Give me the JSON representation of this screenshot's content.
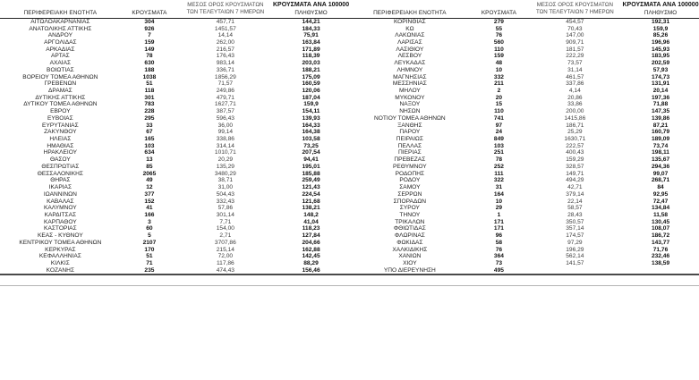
{
  "table": {
    "headers": {
      "region": "ΠΕΡΙΦΕΡΕΙΑΚΗ ΕΝΟΤΗΤΑ",
      "cases": "ΚΡΟΥΣΜΑΤΑ",
      "avg_line1": "ΜΕΣΟΣ ΟΡΟΣ ΚΡΟΥΣΜΑΤΩΝ",
      "avg_line2": "ΤΩΝ ΤΕΛΕΥΤΑΙΩΝ 7 ΗΜΕΡΩΝ",
      "per100k_line1": "ΚΡΟΥΣΜΑΤΑ ΑΝΑ 100000",
      "per100k_line2": "ΠΛΗΘΥΣΜΟ"
    }
  },
  "chart_data": {
    "type": "table",
    "columns": [
      "ΠΕΡΙΦΕΡΕΙΑΚΗ ΕΝΟΤΗΤΑ",
      "ΚΡΟΥΣΜΑΤΑ",
      "ΜΕΣΟΣ ΟΡΟΣ ΚΡΟΥΣΜΑΤΩΝ ΤΩΝ ΤΕΛΕΥΤΑΙΩΝ 7 ΗΜΕΡΩΝ",
      "ΚΡΟΥΣΜΑΤΑ ΑΝΑ 100000 ΠΛΗΘΥΣΜΟ"
    ],
    "left_rows": [
      [
        "ΑΙΤΩΛΟΑΚΑΡΝΑΝΙΑΣ",
        "304",
        "457,71",
        "144,21"
      ],
      [
        "ΑΝΑΤΟΛΙΚΗΣ ΑΤΤΙΚΗΣ",
        "926",
        "1451,57",
        "184,33"
      ],
      [
        "ΑΝΔΡΟΥ",
        "7",
        "14,14",
        "75,91"
      ],
      [
        "ΑΡΓΟΛΙΔΑΣ",
        "159",
        "262,00",
        "163,84"
      ],
      [
        "ΑΡΚΑΔΙΑΣ",
        "149",
        "216,57",
        "171,89"
      ],
      [
        "ΑΡΤΑΣ",
        "78",
        "176,43",
        "118,39"
      ],
      [
        "ΑΧΑΪΑΣ",
        "630",
        "983,14",
        "203,03"
      ],
      [
        "ΒΟΙΩΤΙΑΣ",
        "188",
        "336,71",
        "188,21"
      ],
      [
        "ΒΟΡΕΙΟΥ ΤΟΜΕΑ ΑΘΗΝΩΝ",
        "1038",
        "1856,29",
        "175,09"
      ],
      [
        "ΓΡΕΒΕΝΩΝ",
        "51",
        "71,57",
        "160,59"
      ],
      [
        "ΔΡΑΜΑΣ",
        "118",
        "249,86",
        "120,06"
      ],
      [
        "ΔΥΤΙΚΗΣ ΑΤΤΙΚΗΣ",
        "301",
        "479,71",
        "187,04"
      ],
      [
        "ΔΥΤΙΚΟΥ ΤΟΜΕΑ ΑΘΗΝΩΝ",
        "783",
        "1627,71",
        "159,9"
      ],
      [
        "ΕΒΡΟΥ",
        "228",
        "387,57",
        "154,11"
      ],
      [
        "ΕΥΒΟΙΑΣ",
        "295",
        "596,43",
        "139,93"
      ],
      [
        "ΕΥΡΥΤΑΝΙΑΣ",
        "33",
        "36,00",
        "164,33"
      ],
      [
        "ΖΑΚΥΝΘΟΥ",
        "67",
        "99,14",
        "164,38"
      ],
      [
        "ΗΛΕΙΑΣ",
        "165",
        "338,86",
        "103,58"
      ],
      [
        "ΗΜΑΘΙΑΣ",
        "103",
        "314,14",
        "73,25"
      ],
      [
        "ΗΡΑΚΛΕΙΟΥ",
        "634",
        "1010,71",
        "207,54"
      ],
      [
        "ΘΑΣΟΥ",
        "13",
        "20,29",
        "94,41"
      ],
      [
        "ΘΕΣΠΡΩΤΙΑΣ",
        "85",
        "135,29",
        "195,01"
      ],
      [
        "ΘΕΣΣΑΛΟΝΙΚΗΣ",
        "2065",
        "3480,29",
        "185,88"
      ],
      [
        "ΘΗΡΑΣ",
        "49",
        "38,71",
        "259,49"
      ],
      [
        "ΙΚΑΡΙΑΣ",
        "12",
        "31,00",
        "121,43"
      ],
      [
        "ΙΩΑΝΝΙΝΩΝ",
        "377",
        "504,43",
        "224,54"
      ],
      [
        "ΚΑΒΑΛΑΣ",
        "152",
        "332,43",
        "121,68"
      ],
      [
        "ΚΑΛΥΜΝΟΥ",
        "41",
        "57,86",
        "138,21"
      ],
      [
        "ΚΑΡΔΙΤΣΑΣ",
        "166",
        "301,14",
        "148,2"
      ],
      [
        "ΚΑΡΠΑΘΟΥ",
        "3",
        "7,71",
        "41,04"
      ],
      [
        "ΚΑΣΤΟΡΙΑΣ",
        "60",
        "154,00",
        "118,23"
      ],
      [
        "ΚΕΑΣ - ΚΥΘΝΟΥ",
        "5",
        "2,71",
        "127,84"
      ],
      [
        "ΚΕΝΤΡΙΚΟΥ ΤΟΜΕΑ ΑΘΗΝΩΝ",
        "2107",
        "3707,86",
        "204,66"
      ],
      [
        "ΚΕΡΚΥΡΑΣ",
        "170",
        "215,14",
        "162,88"
      ],
      [
        "ΚΕΦΑΛΛΗΝΙΑΣ",
        "51",
        "72,00",
        "142,45"
      ],
      [
        "ΚΙΛΚΙΣ",
        "71",
        "117,86",
        "88,29"
      ],
      [
        "ΚΟΖΑΝΗΣ",
        "235",
        "474,43",
        "156,46"
      ]
    ],
    "right_rows": [
      [
        "ΚΟΡΙΝΘΙΑΣ",
        "279",
        "454,57",
        "192,31"
      ],
      [
        "ΚΩ",
        "55",
        "70,43",
        "159,9"
      ],
      [
        "ΛΑΚΩΝΙΑΣ",
        "76",
        "147,00",
        "85,26"
      ],
      [
        "ΛΑΡΙΣΑΣ",
        "560",
        "909,71",
        "196,96"
      ],
      [
        "ΛΑΣΙΘΙΟΥ",
        "110",
        "181,57",
        "145,93"
      ],
      [
        "ΛΕΣΒΟΥ",
        "159",
        "222,29",
        "183,95"
      ],
      [
        "ΛΕΥΚΑΔΑΣ",
        "48",
        "73,57",
        "202,59"
      ],
      [
        "ΛΗΜΝΟΥ",
        "10",
        "31,14",
        "57,93"
      ],
      [
        "ΜΑΓΝΗΣΙΑΣ",
        "332",
        "461,57",
        "174,73"
      ],
      [
        "ΜΕΣΣΗΝΙΑΣ",
        "211",
        "337,86",
        "131,91"
      ],
      [
        "ΜΗΛΟΥ",
        "2",
        "4,14",
        "20,14"
      ],
      [
        "ΜΥΚΟΝΟΥ",
        "20",
        "20,86",
        "197,36"
      ],
      [
        "ΝΑΞΟΥ",
        "15",
        "33,86",
        "71,88"
      ],
      [
        "ΝΗΣΩΝ",
        "110",
        "200,00",
        "147,35"
      ],
      [
        "ΝΟΤΙΟΥ ΤΟΜΕΑ ΑΘΗΝΩΝ",
        "741",
        "1415,86",
        "139,86"
      ],
      [
        "ΞΑΝΘΗΣ",
        "97",
        "186,71",
        "87,21"
      ],
      [
        "ΠΑΡΟΥ",
        "24",
        "25,29",
        "160,79"
      ],
      [
        "ΠΕΙΡΑΙΩΣ",
        "849",
        "1630,71",
        "189,09"
      ],
      [
        "ΠΕΛΛΑΣ",
        "103",
        "222,57",
        "73,74"
      ],
      [
        "ΠΙΕΡΙΑΣ",
        "251",
        "400,43",
        "198,11"
      ],
      [
        "ΠΡΕΒΕΖΑΣ",
        "78",
        "159,29",
        "135,67"
      ],
      [
        "ΡΕΘΥΜΝΟΥ",
        "252",
        "328,57",
        "294,36"
      ],
      [
        "ΡΟΔΟΠΗΣ",
        "111",
        "149,71",
        "99,07"
      ],
      [
        "ΡΟΔΟΥ",
        "322",
        "494,29",
        "268,71"
      ],
      [
        "ΣΑΜΟΥ",
        "31",
        "42,71",
        "84"
      ],
      [
        "ΣΕΡΡΩΝ",
        "164",
        "379,14",
        "92,95"
      ],
      [
        "ΣΠΟΡΑΔΩΝ",
        "10",
        "22,14",
        "72,47"
      ],
      [
        "ΣΥΡΟΥ",
        "29",
        "58,57",
        "134,84"
      ],
      [
        "ΤΗΝΟΥ",
        "1",
        "28,43",
        "11,58"
      ],
      [
        "ΤΡΙΚΑΛΩΝ",
        "171",
        "350,57",
        "130,45"
      ],
      [
        "ΦΘΙΩΤΙΔΑΣ",
        "171",
        "357,14",
        "108,07"
      ],
      [
        "ΦΛΩΡΙΝΑΣ",
        "96",
        "174,57",
        "186,72"
      ],
      [
        "ΦΩΚΙΔΑΣ",
        "58",
        "97,29",
        "143,77"
      ],
      [
        "ΧΑΛΚΙΔΙΚΗΣ",
        "76",
        "196,29",
        "71,76"
      ],
      [
        "ΧΑΝΙΩΝ",
        "364",
        "562,14",
        "232,46"
      ],
      [
        "ΧΙΟΥ",
        "73",
        "141,57",
        "138,59"
      ],
      [
        "ΥΠΟ ΔΙΕΡΕΥΝΗΣΗ",
        "495",
        "",
        ""
      ]
    ]
  }
}
